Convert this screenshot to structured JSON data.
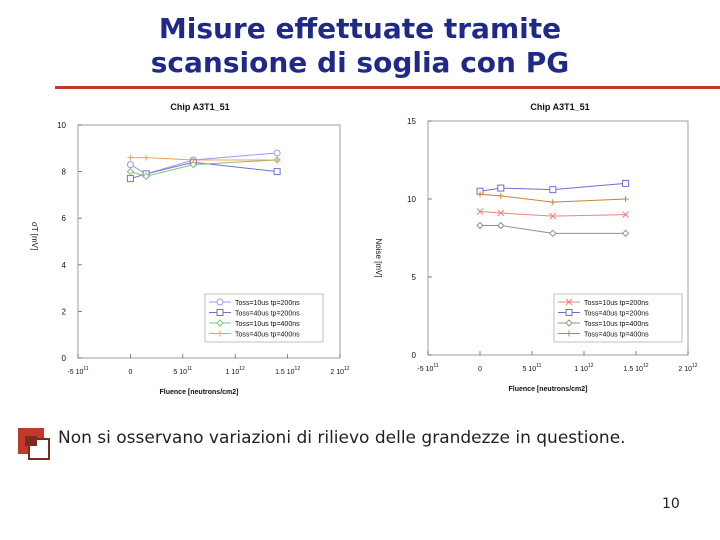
{
  "slide": {
    "title_line1": "Misure effettuate tramite",
    "title_line2": "scansione di soglia con PG",
    "bullet": "Non si osservano variazioni di rilievo delle grandezze in questione.",
    "page_number": "10",
    "accent_color": "#c0392b",
    "title_color": "#1f2a88"
  },
  "chart_data": [
    {
      "type": "line",
      "title": "Chip A3T1_51",
      "xlabel": "Fluence [neutrons/cm2]",
      "ylabel": "σT [mV]",
      "xlim": [
        -500000000000,
        2000000000000
      ],
      "ylim": [
        0,
        10
      ],
      "xticks": [
        {
          "value": -500000000000,
          "label": "-5 10",
          "exp": "11"
        },
        {
          "value": 0,
          "label": "0",
          "exp": ""
        },
        {
          "value": 500000000000,
          "label": "5 10",
          "exp": "11"
        },
        {
          "value": 1000000000000,
          "label": "1 10",
          "exp": "12"
        },
        {
          "value": 1500000000000,
          "label": "1.5 10",
          "exp": "12"
        },
        {
          "value": 2000000000000,
          "label": "2 10",
          "exp": "12"
        }
      ],
      "yticks": [
        {
          "value": 0,
          "label": "0"
        },
        {
          "value": 2,
          "label": "2"
        },
        {
          "value": 4,
          "label": "4"
        },
        {
          "value": 6,
          "label": "6"
        },
        {
          "value": 8,
          "label": "8"
        },
        {
          "value": 10,
          "label": "10"
        }
      ],
      "legend_position": "bottom-right",
      "series": [
        {
          "name": "Toss=10us tp=200ns",
          "color": "#9a9af0",
          "marker": "circle",
          "x": [
            0,
            150000000000,
            600000000000,
            1400000000000
          ],
          "y": [
            8.3,
            7.9,
            8.5,
            8.8
          ]
        },
        {
          "name": "Toss=40us tp=200ns",
          "color": "#6f6fd8",
          "marker": "square",
          "x": [
            0,
            150000000000,
            600000000000,
            1400000000000
          ],
          "y": [
            7.7,
            7.9,
            8.4,
            8.0
          ]
        },
        {
          "name": "Toss=10us tp=400ns",
          "color": "#7bc47b",
          "marker": "diamond",
          "x": [
            0,
            150000000000,
            600000000000,
            1400000000000
          ],
          "y": [
            8.0,
            7.8,
            8.3,
            8.5
          ]
        },
        {
          "name": "Toss=40us tp=400ns",
          "color": "#f0a060",
          "marker": "plus",
          "x": [
            0,
            150000000000,
            600000000000,
            1400000000000
          ],
          "y": [
            8.6,
            8.6,
            8.5,
            8.5
          ]
        }
      ]
    },
    {
      "type": "line",
      "title": "Chip A3T1_51",
      "xlabel": "Fluence [neutrons/cm2]",
      "ylabel": "Noise [mV]",
      "xlim": [
        -500000000000,
        2000000000000
      ],
      "ylim": [
        0,
        15
      ],
      "xticks": [
        {
          "value": -500000000000,
          "label": "-5 10",
          "exp": "11"
        },
        {
          "value": 0,
          "label": "0",
          "exp": ""
        },
        {
          "value": 500000000000,
          "label": "5 10",
          "exp": "11"
        },
        {
          "value": 1000000000000,
          "label": "1 10",
          "exp": "12"
        },
        {
          "value": 1500000000000,
          "label": "1.5 10",
          "exp": "12"
        },
        {
          "value": 2000000000000,
          "label": "2 10",
          "exp": "12"
        }
      ],
      "yticks": [
        {
          "value": 0,
          "label": "0"
        },
        {
          "value": 5,
          "label": "5"
        },
        {
          "value": 10,
          "label": "10"
        },
        {
          "value": 15,
          "label": "15"
        }
      ],
      "legend_position": "bottom-right",
      "series": [
        {
          "name": "Toss=10us tp=200ns",
          "color": "#f08080",
          "marker": "cross",
          "x": [
            0,
            200000000000,
            700000000000,
            1400000000000
          ],
          "y": [
            9.2,
            9.1,
            8.9,
            9.0
          ]
        },
        {
          "name": "Toss=40us tp=200ns",
          "color": "#6f6fd8",
          "marker": "square",
          "x": [
            0,
            200000000000,
            700000000000,
            1400000000000
          ],
          "y": [
            10.5,
            10.7,
            10.6,
            11.0
          ]
        },
        {
          "name": "Toss=10us tp=400ns",
          "color": "#909090",
          "marker": "diamond",
          "x": [
            0,
            200000000000,
            700000000000,
            1400000000000
          ],
          "y": [
            8.3,
            8.3,
            7.8,
            7.8
          ]
        },
        {
          "name": "Toss=40us tp=400ns",
          "color": "#d08030",
          "marker": "plus",
          "x": [
            0,
            200000000000,
            700000000000,
            1400000000000
          ],
          "y": [
            10.3,
            10.2,
            9.8,
            10.0
          ]
        }
      ]
    }
  ]
}
